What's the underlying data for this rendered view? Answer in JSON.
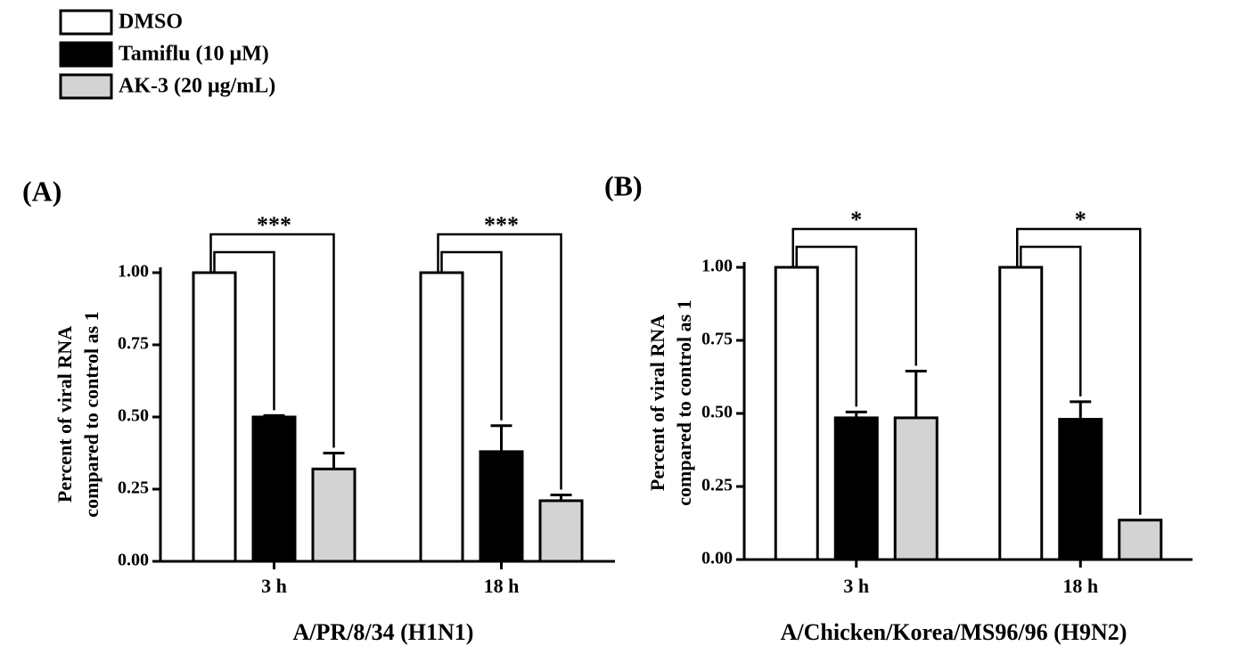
{
  "chart_data": [
    {
      "type": "bar",
      "title": "(A)",
      "xlabel": "A/PR/8/34 (H1N1)",
      "ylabel": [
        "Percent of  viral RNA",
        "compared to control as 1"
      ],
      "categories": [
        "3 h",
        "18 h"
      ],
      "series": [
        {
          "name": "DMSO",
          "color": "#ffffff",
          "values": [
            1.0,
            1.0
          ]
        },
        {
          "name": "Tamiflu (10 μM)",
          "color": "#000000",
          "values": [
            0.5,
            0.38
          ],
          "errors": [
            0.005,
            0.09
          ]
        },
        {
          "name": "AK-3 (20 μg/mL)",
          "color": "#d3d3d3",
          "values": [
            0.32,
            0.21
          ],
          "errors": [
            0.055,
            0.02
          ]
        }
      ],
      "significance": [
        "***",
        "***"
      ],
      "ylim": [
        0,
        1.0
      ],
      "yticks": [
        {
          "value": 0,
          "label": "0.00"
        },
        {
          "value": 0.25,
          "label": "0.25"
        },
        {
          "value": 0.5,
          "label": "0.50"
        },
        {
          "value": 0.75,
          "label": "0.75"
        },
        {
          "value": 1,
          "label": "1.00"
        }
      ]
    },
    {
      "type": "bar",
      "title": "(B)",
      "xlabel": "A/Chicken/Korea/MS96/96 (H9N2)",
      "ylabel": [
        "Percent of  viral RNA",
        "compared to control as 1"
      ],
      "categories": [
        "3 h",
        "18 h"
      ],
      "series": [
        {
          "color": "#ffffff",
          "values": [
            1.0,
            1.0
          ]
        },
        {
          "color": "#000000",
          "values": [
            0.485,
            0.48
          ],
          "errors": [
            0.02,
            0.06
          ]
        },
        {
          "color": "#d3d3d3",
          "values": [
            0.485,
            0.135
          ],
          "errors": [
            0.16,
            null
          ]
        }
      ],
      "significance": [
        "*",
        "*"
      ],
      "ylim": [
        0,
        1.0
      ],
      "yticks": [
        {
          "value": 0,
          "label": "0.00"
        },
        {
          "value": 0.25,
          "label": "0.25"
        },
        {
          "value": 0.5,
          "label": "0.50"
        },
        {
          "value": 0.75,
          "label": "0.75"
        },
        {
          "value": 1,
          "label": "1.00"
        }
      ]
    }
  ]
}
